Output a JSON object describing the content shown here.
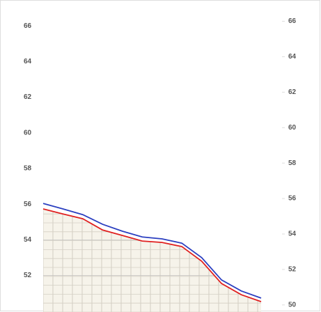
{
  "chart_data": {
    "type": "line",
    "categories": [
      null,
      null,
      null,
      null,
      null,
      null,
      null,
      null,
      null,
      null,
      null,
      null
    ],
    "series": [
      {
        "color": "#2b3fc0",
        "values": [
          56.04,
          55.73,
          55.41,
          54.87,
          54.48,
          54.16,
          54.05,
          53.81,
          53.0,
          51.75,
          51.13,
          50.73
        ]
      },
      {
        "color": "#e02020",
        "values": [
          55.73,
          55.45,
          55.18,
          54.55,
          54.24,
          53.93,
          53.85,
          53.62,
          52.8,
          51.55,
          50.92,
          50.53
        ]
      }
    ],
    "ylim": [
      49.95,
      67.45
    ],
    "yticks": [
      66,
      64,
      62,
      60,
      58,
      56,
      54,
      52
    ],
    "y2lim": [
      49.6,
      67.2
    ],
    "y2ticks": [
      66,
      64,
      62,
      60,
      58,
      56,
      54,
      52,
      50
    ],
    "grid": true
  }
}
